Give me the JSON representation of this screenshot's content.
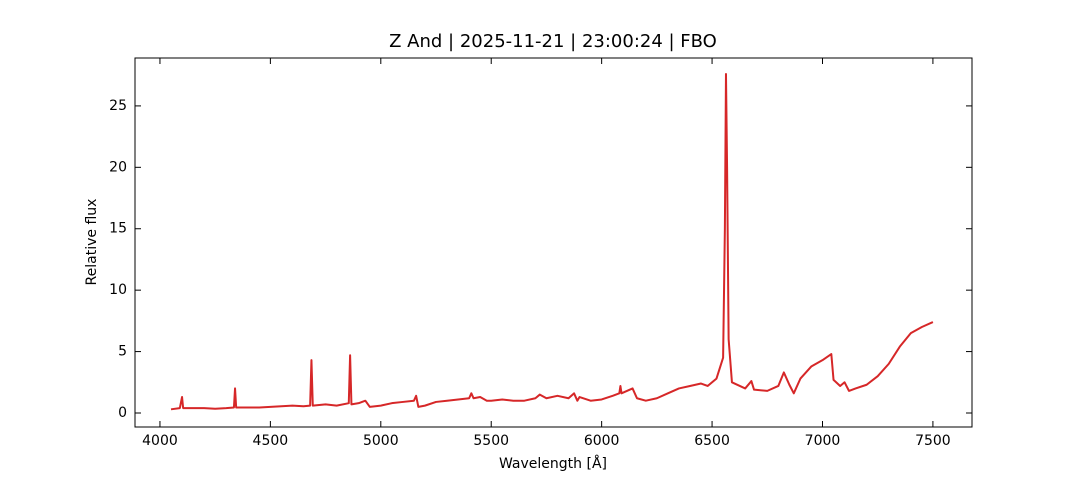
{
  "chart_data": {
    "type": "line",
    "title": "Z And | 2025-11-21 | 23:00:24 | FBO",
    "xlabel": "Wavelength [Å]",
    "ylabel": "Relative flux",
    "color": "#d62728",
    "x": [
      4050,
      4090,
      4100,
      4105,
      4150,
      4200,
      4250,
      4300,
      4335,
      4340,
      4345,
      4400,
      4450,
      4500,
      4550,
      4600,
      4650,
      4680,
      4686,
      4692,
      4750,
      4800,
      4855,
      4861,
      4867,
      4900,
      4930,
      4950,
      5000,
      5050,
      5100,
      5150,
      5160,
      5170,
      5200,
      5250,
      5300,
      5350,
      5400,
      5410,
      5420,
      5450,
      5480,
      5500,
      5550,
      5600,
      5650,
      5700,
      5720,
      5750,
      5800,
      5850,
      5875,
      5890,
      5900,
      5950,
      6000,
      6050,
      6080,
      6085,
      6090,
      6140,
      6160,
      6200,
      6250,
      6300,
      6350,
      6400,
      6450,
      6480,
      6520,
      6550,
      6558,
      6563,
      6568,
      6575,
      6590,
      6650,
      6678,
      6690,
      6750,
      6800,
      6825,
      6850,
      6870,
      6900,
      6950,
      7000,
      7040,
      7050,
      7080,
      7100,
      7120,
      7150,
      7200,
      7250,
      7300,
      7350,
      7400,
      7450,
      7500
    ],
    "values": [
      0.3,
      0.4,
      1.3,
      0.4,
      0.4,
      0.4,
      0.35,
      0.4,
      0.45,
      2.0,
      0.45,
      0.45,
      0.45,
      0.5,
      0.55,
      0.6,
      0.55,
      0.6,
      4.3,
      0.6,
      0.7,
      0.6,
      0.8,
      4.7,
      0.7,
      0.8,
      1.0,
      0.5,
      0.6,
      0.8,
      0.9,
      1.0,
      1.4,
      0.5,
      0.6,
      0.9,
      1.0,
      1.1,
      1.2,
      1.6,
      1.2,
      1.3,
      1.0,
      1.0,
      1.1,
      1.0,
      1.0,
      1.2,
      1.5,
      1.2,
      1.4,
      1.2,
      1.6,
      1.0,
      1.3,
      1.0,
      1.1,
      1.4,
      1.6,
      2.2,
      1.6,
      2.0,
      1.2,
      1.0,
      1.2,
      1.6,
      2.0,
      2.2,
      2.4,
      2.2,
      2.8,
      4.5,
      15,
      27.6,
      20,
      6,
      2.5,
      2.0,
      2.6,
      1.9,
      1.8,
      2.2,
      3.3,
      2.3,
      1.6,
      2.8,
      3.8,
      4.3,
      4.8,
      2.7,
      2.2,
      2.5,
      1.8,
      2.0,
      2.3,
      3.0,
      4.0,
      5.4,
      6.5,
      7.0,
      7.4
    ],
    "xlim": [
      3887,
      7677
    ],
    "ylim": [
      -1.14,
      28.9
    ],
    "xticks": [
      4000,
      4500,
      5000,
      5500,
      6000,
      6500,
      7000,
      7500
    ],
    "yticks": [
      0,
      5,
      10,
      15,
      20,
      25
    ]
  }
}
